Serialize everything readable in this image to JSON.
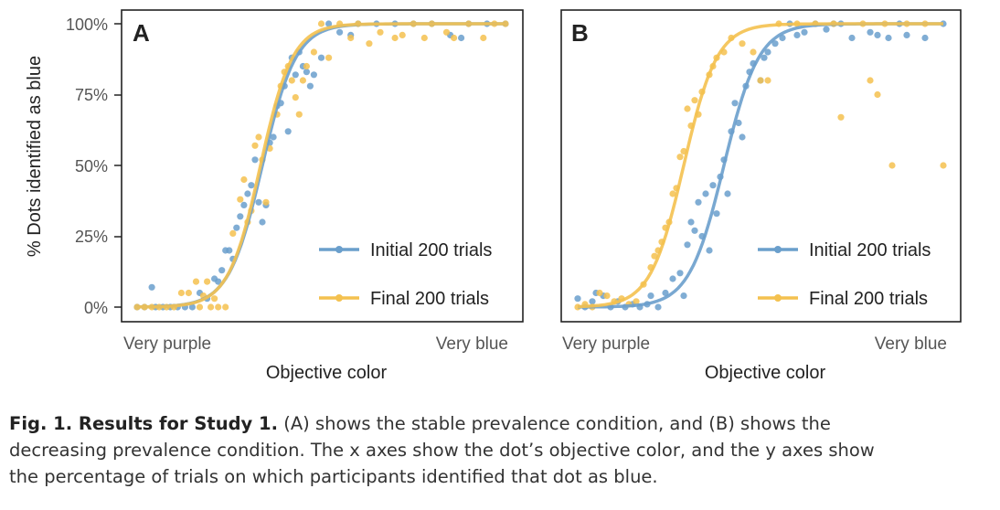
{
  "figure": {
    "y_axis_label": "% Dots identified as blue",
    "y_ticks": [
      "0%",
      "25%",
      "50%",
      "75%",
      "100%"
    ],
    "colors": {
      "initial": "#6a9fcc",
      "final": "#f4c14f",
      "frame": "#222222"
    }
  },
  "chart_data": [
    {
      "type": "scatter",
      "panel_label": "A",
      "xlabel": "Objective color",
      "x_tick_labels": [
        "Very purple",
        "Very blue"
      ],
      "ylabel": "% Dots identified as blue",
      "ylim": [
        0,
        100
      ],
      "legend_position": "bottom-right",
      "fit_curves": [
        {
          "name": "Initial 200 trials",
          "type": "logistic",
          "x0": 0.34,
          "k": 22
        },
        {
          "name": "Final 200 trials",
          "type": "logistic",
          "x0": 0.335,
          "k": 23
        }
      ],
      "series": [
        {
          "name": "Initial 200 trials",
          "points": [
            [
              0.0,
              0
            ],
            [
              0.02,
              0
            ],
            [
              0.04,
              7
            ],
            [
              0.05,
              0
            ],
            [
              0.07,
              0
            ],
            [
              0.09,
              0
            ],
            [
              0.11,
              0
            ],
            [
              0.13,
              0
            ],
            [
              0.15,
              0
            ],
            [
              0.17,
              5
            ],
            [
              0.19,
              3
            ],
            [
              0.21,
              10
            ],
            [
              0.22,
              9
            ],
            [
              0.23,
              13
            ],
            [
              0.24,
              20
            ],
            [
              0.25,
              20
            ],
            [
              0.26,
              17
            ],
            [
              0.27,
              28
            ],
            [
              0.28,
              32
            ],
            [
              0.29,
              36
            ],
            [
              0.3,
              40
            ],
            [
              0.31,
              43
            ],
            [
              0.32,
              52
            ],
            [
              0.33,
              37
            ],
            [
              0.34,
              30
            ],
            [
              0.35,
              36
            ],
            [
              0.36,
              58
            ],
            [
              0.37,
              60
            ],
            [
              0.38,
              71
            ],
            [
              0.39,
              72
            ],
            [
              0.4,
              78
            ],
            [
              0.41,
              62
            ],
            [
              0.42,
              88
            ],
            [
              0.43,
              82
            ],
            [
              0.44,
              90
            ],
            [
              0.45,
              85
            ],
            [
              0.46,
              83
            ],
            [
              0.47,
              78
            ],
            [
              0.48,
              82
            ],
            [
              0.5,
              88
            ],
            [
              0.52,
              100
            ],
            [
              0.55,
              97
            ],
            [
              0.58,
              96
            ],
            [
              0.6,
              100
            ],
            [
              0.65,
              100
            ],
            [
              0.7,
              100
            ],
            [
              0.75,
              100
            ],
            [
              0.8,
              100
            ],
            [
              0.85,
              96
            ],
            [
              0.88,
              95
            ],
            [
              0.9,
              100
            ],
            [
              0.95,
              100
            ],
            [
              1.0,
              100
            ]
          ]
        },
        {
          "name": "Final 200 trials",
          "points": [
            [
              0.0,
              0
            ],
            [
              0.02,
              0
            ],
            [
              0.04,
              0
            ],
            [
              0.06,
              0
            ],
            [
              0.08,
              0
            ],
            [
              0.1,
              0
            ],
            [
              0.12,
              5
            ],
            [
              0.14,
              5
            ],
            [
              0.16,
              9
            ],
            [
              0.17,
              0
            ],
            [
              0.18,
              4
            ],
            [
              0.19,
              9
            ],
            [
              0.2,
              0
            ],
            [
              0.21,
              3
            ],
            [
              0.22,
              0
            ],
            [
              0.24,
              0
            ],
            [
              0.26,
              26
            ],
            [
              0.28,
              38
            ],
            [
              0.29,
              45
            ],
            [
              0.3,
              30
            ],
            [
              0.31,
              34
            ],
            [
              0.32,
              57
            ],
            [
              0.33,
              60
            ],
            [
              0.34,
              52
            ],
            [
              0.35,
              37
            ],
            [
              0.36,
              56
            ],
            [
              0.38,
              68
            ],
            [
              0.39,
              78
            ],
            [
              0.4,
              83
            ],
            [
              0.41,
              85
            ],
            [
              0.42,
              80
            ],
            [
              0.43,
              74
            ],
            [
              0.44,
              68
            ],
            [
              0.45,
              80
            ],
            [
              0.46,
              85
            ],
            [
              0.48,
              90
            ],
            [
              0.5,
              100
            ],
            [
              0.52,
              88
            ],
            [
              0.55,
              100
            ],
            [
              0.58,
              95
            ],
            [
              0.6,
              100
            ],
            [
              0.63,
              93
            ],
            [
              0.66,
              97
            ],
            [
              0.7,
              95
            ],
            [
              0.72,
              96
            ],
            [
              0.75,
              100
            ],
            [
              0.78,
              95
            ],
            [
              0.8,
              100
            ],
            [
              0.84,
              97
            ],
            [
              0.86,
              95
            ],
            [
              0.9,
              100
            ],
            [
              0.94,
              95
            ],
            [
              0.97,
              100
            ],
            [
              1.0,
              100
            ]
          ]
        }
      ]
    },
    {
      "type": "scatter",
      "panel_label": "B",
      "xlabel": "Objective color",
      "x_tick_labels": [
        "Very purple",
        "Very blue"
      ],
      "ylabel": "% Dots identified as blue",
      "ylim": [
        0,
        100
      ],
      "legend_position": "bottom-right",
      "fit_curves": [
        {
          "name": "Initial 200 trials",
          "type": "logistic",
          "x0": 0.4,
          "k": 21
        },
        {
          "name": "Final 200 trials",
          "type": "logistic",
          "x0": 0.29,
          "k": 22
        }
      ],
      "series": [
        {
          "name": "Initial 200 trials",
          "points": [
            [
              0.0,
              3
            ],
            [
              0.02,
              0
            ],
            [
              0.04,
              2
            ],
            [
              0.05,
              5
            ],
            [
              0.07,
              4
            ],
            [
              0.09,
              0
            ],
            [
              0.11,
              2
            ],
            [
              0.13,
              0
            ],
            [
              0.15,
              1
            ],
            [
              0.17,
              0
            ],
            [
              0.19,
              1
            ],
            [
              0.2,
              4
            ],
            [
              0.22,
              0
            ],
            [
              0.24,
              5
            ],
            [
              0.26,
              10
            ],
            [
              0.28,
              12
            ],
            [
              0.29,
              4
            ],
            [
              0.3,
              22
            ],
            [
              0.31,
              30
            ],
            [
              0.32,
              27
            ],
            [
              0.33,
              37
            ],
            [
              0.34,
              25
            ],
            [
              0.35,
              40
            ],
            [
              0.36,
              20
            ],
            [
              0.37,
              43
            ],
            [
              0.38,
              33
            ],
            [
              0.39,
              46
            ],
            [
              0.4,
              52
            ],
            [
              0.41,
              40
            ],
            [
              0.42,
              62
            ],
            [
              0.43,
              72
            ],
            [
              0.44,
              65
            ],
            [
              0.45,
              60
            ],
            [
              0.46,
              78
            ],
            [
              0.47,
              83
            ],
            [
              0.48,
              86
            ],
            [
              0.5,
              80
            ],
            [
              0.51,
              88
            ],
            [
              0.52,
              90
            ],
            [
              0.54,
              93
            ],
            [
              0.56,
              95
            ],
            [
              0.58,
              100
            ],
            [
              0.6,
              96
            ],
            [
              0.62,
              97
            ],
            [
              0.65,
              100
            ],
            [
              0.68,
              98
            ],
            [
              0.7,
              100
            ],
            [
              0.72,
              100
            ],
            [
              0.75,
              95
            ],
            [
              0.8,
              97
            ],
            [
              0.82,
              96
            ],
            [
              0.85,
              95
            ],
            [
              0.88,
              100
            ],
            [
              0.9,
              96
            ],
            [
              0.95,
              95
            ],
            [
              1.0,
              100
            ]
          ]
        },
        {
          "name": "Final 200 trials",
          "points": [
            [
              0.0,
              0
            ],
            [
              0.02,
              1
            ],
            [
              0.04,
              0
            ],
            [
              0.06,
              5
            ],
            [
              0.08,
              4
            ],
            [
              0.1,
              2
            ],
            [
              0.12,
              3
            ],
            [
              0.14,
              1
            ],
            [
              0.16,
              2
            ],
            [
              0.18,
              8
            ],
            [
              0.2,
              14
            ],
            [
              0.21,
              18
            ],
            [
              0.22,
              20
            ],
            [
              0.23,
              23
            ],
            [
              0.24,
              28
            ],
            [
              0.25,
              30
            ],
            [
              0.26,
              40
            ],
            [
              0.27,
              42
            ],
            [
              0.28,
              53
            ],
            [
              0.29,
              55
            ],
            [
              0.3,
              70
            ],
            [
              0.31,
              64
            ],
            [
              0.32,
              73
            ],
            [
              0.33,
              68
            ],
            [
              0.34,
              76
            ],
            [
              0.36,
              82
            ],
            [
              0.37,
              85
            ],
            [
              0.38,
              88
            ],
            [
              0.4,
              90
            ],
            [
              0.42,
              95
            ],
            [
              0.45,
              93
            ],
            [
              0.48,
              90
            ],
            [
              0.5,
              80
            ],
            [
              0.52,
              80
            ],
            [
              0.55,
              100
            ],
            [
              0.6,
              100
            ],
            [
              0.65,
              100
            ],
            [
              0.7,
              100
            ],
            [
              0.72,
              67
            ],
            [
              0.78,
              100
            ],
            [
              0.8,
              80
            ],
            [
              0.82,
              75
            ],
            [
              0.84,
              100
            ],
            [
              0.86,
              50
            ],
            [
              0.9,
              100
            ],
            [
              0.95,
              100
            ],
            [
              1.0,
              50
            ]
          ]
        }
      ]
    }
  ],
  "caption": {
    "fig_label": "Fig. 1. Results for Study 1.",
    "lines": [
      " (A) shows the stable prevalence condition, and (B) shows the",
      "decreasing prevalence condition. The x axes show the dot’s objective color, and the y axes show",
      "the percentage of trials on which participants identified that dot as blue."
    ]
  }
}
